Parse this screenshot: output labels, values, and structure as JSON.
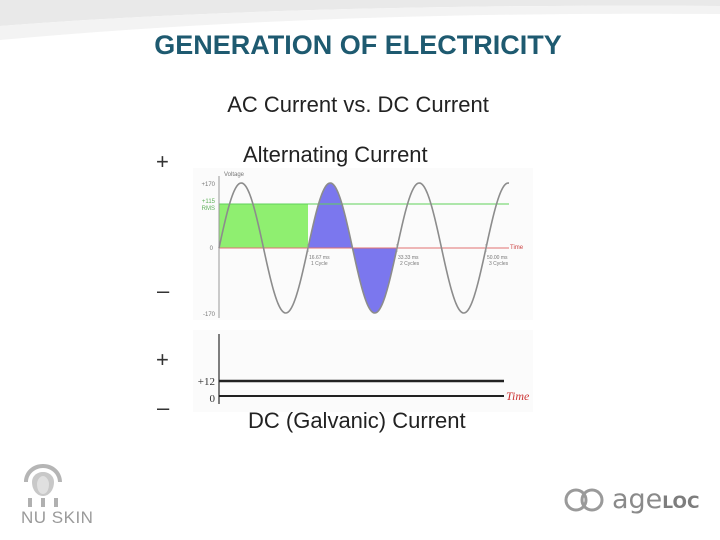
{
  "slide": {
    "title": "GENERATION OF ELECTRICITY",
    "subtitle": "AC Current vs. DC Current",
    "ac_label": "Alternating Current",
    "dc_label": "DC (Galvanic) Current",
    "signs": {
      "plus_top": "+",
      "minus_top": "–",
      "plus_bottom": "+",
      "minus_bottom": "–"
    }
  },
  "ac_chart": {
    "y_axis_label": "Voltage",
    "x_axis_label": "Time",
    "ticks": {
      "peak_pos": "+170",
      "rms_top": "+115",
      "rms_bottom": "RMS",
      "zero": "0",
      "peak_neg": "-170"
    },
    "markers": [
      {
        "t_ms": 16.67,
        "line1": "16.67 ms",
        "line2": "1 Cycle"
      },
      {
        "t_ms": 33.33,
        "line1": "33.33 ms",
        "line2": "2 Cycles"
      },
      {
        "t_ms": 50.0,
        "line1": "50.00 ms",
        "line2": "3 Cycles"
      }
    ],
    "peak_voltage": 170,
    "rms_voltage": 115,
    "cycles_shown": 3.3,
    "colors": {
      "rms_fill": "#8fef70",
      "wave_fill": "#7b77ee",
      "rms_line": "#5fd05a",
      "zero_line": "#e07070",
      "wave": "#8c8c8c"
    }
  },
  "dc_chart": {
    "y_tick_top": "+12",
    "y_tick_zero": "0",
    "x_axis_label": "Time",
    "voltage": 12,
    "colors": {
      "axis_label": "#cc3333",
      "line": "#222222"
    }
  },
  "logos": {
    "left_text": "NU SKIN",
    "right_text_a": "age",
    "right_text_b": "LOC"
  }
}
